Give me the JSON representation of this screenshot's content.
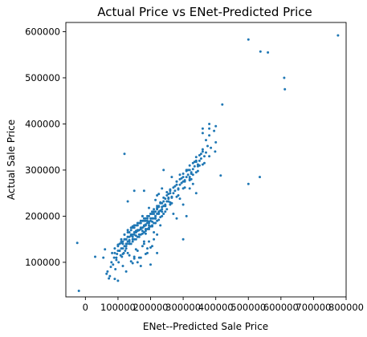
{
  "chart_data": {
    "type": "scatter",
    "title": "Actual Price vs ENet-Predicted Price",
    "xlabel": "ENet--Predicted Sale Price",
    "ylabel": "Actual Sale Price",
    "xlim": [
      -60000,
      800000
    ],
    "ylim": [
      25000,
      620000
    ],
    "xticks": [
      0,
      100000,
      200000,
      300000,
      400000,
      500000,
      600000,
      700000,
      800000
    ],
    "xtick_labels": [
      "0",
      "100000",
      "200000",
      "300000",
      "400000",
      "500000",
      "600000",
      "700000",
      "800000"
    ],
    "yticks": [
      100000,
      200000,
      300000,
      400000,
      500000,
      600000
    ],
    "ytick_labels": [
      "100000",
      "200000",
      "300000",
      "400000",
      "500000",
      "600000"
    ],
    "grid": false,
    "marker_color": "#1f77b4",
    "series": [
      {
        "x": [
          -25000,
          -20000,
          30000,
          55000,
          60000,
          65000,
          68000,
          72000,
          75000,
          78000,
          80000,
          82000,
          85000,
          88000,
          90000,
          92000,
          95000,
          97000,
          100000,
          102000,
          105000,
          108000,
          110000,
          112000,
          115000,
          118000,
          120000,
          122000,
          125000,
          128000,
          90000,
          95000,
          100000,
          105000,
          110000,
          115000,
          120000,
          125000,
          130000,
          135000,
          100000,
          105000,
          110000,
          115000,
          120000,
          125000,
          130000,
          135000,
          140000,
          145000,
          110000,
          115000,
          120000,
          125000,
          130000,
          135000,
          140000,
          145000,
          150000,
          155000,
          120000,
          125000,
          130000,
          135000,
          140000,
          145000,
          150000,
          155000,
          160000,
          165000,
          130000,
          135000,
          140000,
          145000,
          150000,
          155000,
          160000,
          165000,
          170000,
          175000,
          140000,
          145000,
          150000,
          155000,
          160000,
          165000,
          170000,
          175000,
          180000,
          185000,
          150000,
          155000,
          160000,
          165000,
          170000,
          175000,
          180000,
          185000,
          190000,
          195000,
          160000,
          165000,
          170000,
          175000,
          180000,
          185000,
          190000,
          195000,
          200000,
          205000,
          170000,
          175000,
          180000,
          185000,
          190000,
          195000,
          200000,
          205000,
          210000,
          215000,
          180000,
          185000,
          190000,
          195000,
          200000,
          205000,
          210000,
          215000,
          220000,
          225000,
          190000,
          195000,
          200000,
          205000,
          210000,
          215000,
          220000,
          225000,
          230000,
          235000,
          200000,
          205000,
          210000,
          215000,
          220000,
          225000,
          230000,
          235000,
          240000,
          245000,
          210000,
          215000,
          220000,
          225000,
          230000,
          235000,
          240000,
          245000,
          250000,
          255000,
          220000,
          225000,
          230000,
          235000,
          240000,
          245000,
          250000,
          255000,
          260000,
          265000,
          240000,
          245000,
          250000,
          255000,
          260000,
          265000,
          270000,
          275000,
          280000,
          285000,
          260000,
          265000,
          270000,
          275000,
          280000,
          285000,
          290000,
          295000,
          300000,
          305000,
          280000,
          285000,
          290000,
          295000,
          300000,
          305000,
          310000,
          315000,
          320000,
          325000,
          300000,
          305000,
          310000,
          315000,
          320000,
          325000,
          330000,
          335000,
          340000,
          345000,
          320000,
          325000,
          330000,
          335000,
          340000,
          345000,
          350000,
          355000,
          360000,
          365000,
          340000,
          345000,
          350000,
          355000,
          360000,
          365000,
          370000,
          375000,
          380000,
          385000,
          150000,
          160000,
          170000,
          180000,
          190000,
          200000,
          210000,
          220000,
          230000,
          240000,
          250000,
          260000,
          270000,
          280000,
          290000,
          300000,
          310000,
          320000,
          330000,
          340000,
          130000,
          140000,
          150000,
          160000,
          170000,
          180000,
          190000,
          200000,
          210000,
          220000,
          115000,
          125000,
          135000,
          145000,
          155000,
          165000,
          175000,
          185000,
          195000,
          205000,
          175000,
          185000,
          195000,
          205000,
          215000,
          225000,
          235000,
          245000,
          255000,
          265000,
          145000,
          155000,
          165000,
          175000,
          185000,
          195000,
          205000,
          215000,
          225000,
          235000,
          290000,
          300000,
          310000,
          320000,
          330000,
          340000,
          350000,
          360000,
          370000,
          380000,
          120000,
          180000,
          220000,
          260000,
          280000,
          300000,
          320000,
          360000,
          380000,
          395000,
          398000,
          400000,
          415000,
          420000,
          500000,
          500000,
          535000,
          537000,
          560000,
          610000,
          612000,
          775000,
          360000,
          380000,
          400000,
          150000,
          130000,
          100000,
          90000,
          240000
        ],
        "y": [
          142000,
          38000,
          112000,
          110000,
          128000,
          75000,
          80000,
          65000,
          70000,
          90000,
          100000,
          120000,
          95000,
          110000,
          130000,
          85000,
          105000,
          118000,
          125000,
          100000,
          140000,
          115000,
          130000,
          112000,
          145000,
          120000,
          135000,
          125000,
          150000,
          140000,
          120000,
          110000,
          138000,
          125000,
          142000,
          118000,
          150000,
          135000,
          155000,
          148000,
          135000,
          125000,
          150000,
          140000,
          160000,
          130000,
          145000,
          165000,
          140000,
          155000,
          145000,
          130000,
          160000,
          150000,
          170000,
          140000,
          158000,
          175000,
          150000,
          165000,
          150000,
          140000,
          165000,
          155000,
          175000,
          145000,
          160000,
          180000,
          155000,
          170000,
          155000,
          145000,
          170000,
          160000,
          180000,
          150000,
          168000,
          185000,
          160000,
          175000,
          160000,
          150000,
          175000,
          165000,
          185000,
          155000,
          172000,
          190000,
          165000,
          182000,
          165000,
          158000,
          180000,
          170000,
          190000,
          162000,
          178000,
          195000,
          172000,
          188000,
          170000,
          160000,
          185000,
          175000,
          195000,
          168000,
          185000,
          200000,
          178000,
          195000,
          175000,
          168000,
          190000,
          180000,
          200000,
          172000,
          190000,
          205000,
          185000,
          200000,
          180000,
          172000,
          195000,
          185000,
          205000,
          178000,
          195000,
          210000,
          190000,
          208000,
          190000,
          180000,
          205000,
          195000,
          215000,
          185000,
          205000,
          220000,
          198000,
          215000,
          195000,
          188000,
          210000,
          200000,
          222000,
          192000,
          212000,
          228000,
          205000,
          222000,
          205000,
          195000,
          218000,
          210000,
          230000,
          200000,
          222000,
          238000,
          215000,
          232000,
          215000,
          205000,
          228000,
          220000,
          240000,
          210000,
          232000,
          248000,
          225000,
          242000,
          232000,
          222000,
          245000,
          238000,
          258000,
          228000,
          250000,
          265000,
          242000,
          260000,
          250000,
          240000,
          262000,
          255000,
          275000,
          245000,
          268000,
          282000,
          260000,
          278000,
          268000,
          258000,
          280000,
          272000,
          292000,
          262000,
          285000,
          300000,
          278000,
          295000,
          285000,
          275000,
          298000,
          290000,
          310000,
          280000,
          302000,
          318000,
          295000,
          312000,
          300000,
          292000,
          315000,
          308000,
          328000,
          298000,
          320000,
          335000,
          312000,
          330000,
          318000,
          308000,
          332000,
          325000,
          345000,
          315000,
          338000,
          352000,
          330000,
          348000,
          112000,
          100000,
          92000,
          145000,
          130000,
          95000,
          165000,
          120000,
          180000,
          205000,
          252000,
          230000,
          205000,
          195000,
          238000,
          225000,
          200000,
          260000,
          270000,
          250000,
          120000,
          102000,
          108000,
          125000,
          110000,
          140000,
          120000,
          132000,
          150000,
          160000,
          92000,
          80000,
          115000,
          98000,
          128000,
          110000,
          135000,
          118000,
          145000,
          135000,
          200000,
          190000,
          218000,
          180000,
          235000,
          248000,
          260000,
          225000,
          240000,
          285000,
          178000,
          168000,
          185000,
          200000,
          162000,
          175000,
          210000,
          195000,
          222000,
          210000,
          290000,
          275000,
          300000,
          280000,
          290000,
          320000,
          310000,
          340000,
          365000,
          375000,
          335000,
          255000,
          245000,
          255000,
          275000,
          150000,
          285000,
          390000,
          400000,
          385000,
          340000,
          395000,
          288000,
          442000,
          270000,
          583000,
          285000,
          557000,
          555000,
          500000,
          475000,
          592000,
          380000,
          390000,
          360000,
          255000,
          232000,
          60000,
          64000,
          300000
        ]
      }
    ]
  }
}
